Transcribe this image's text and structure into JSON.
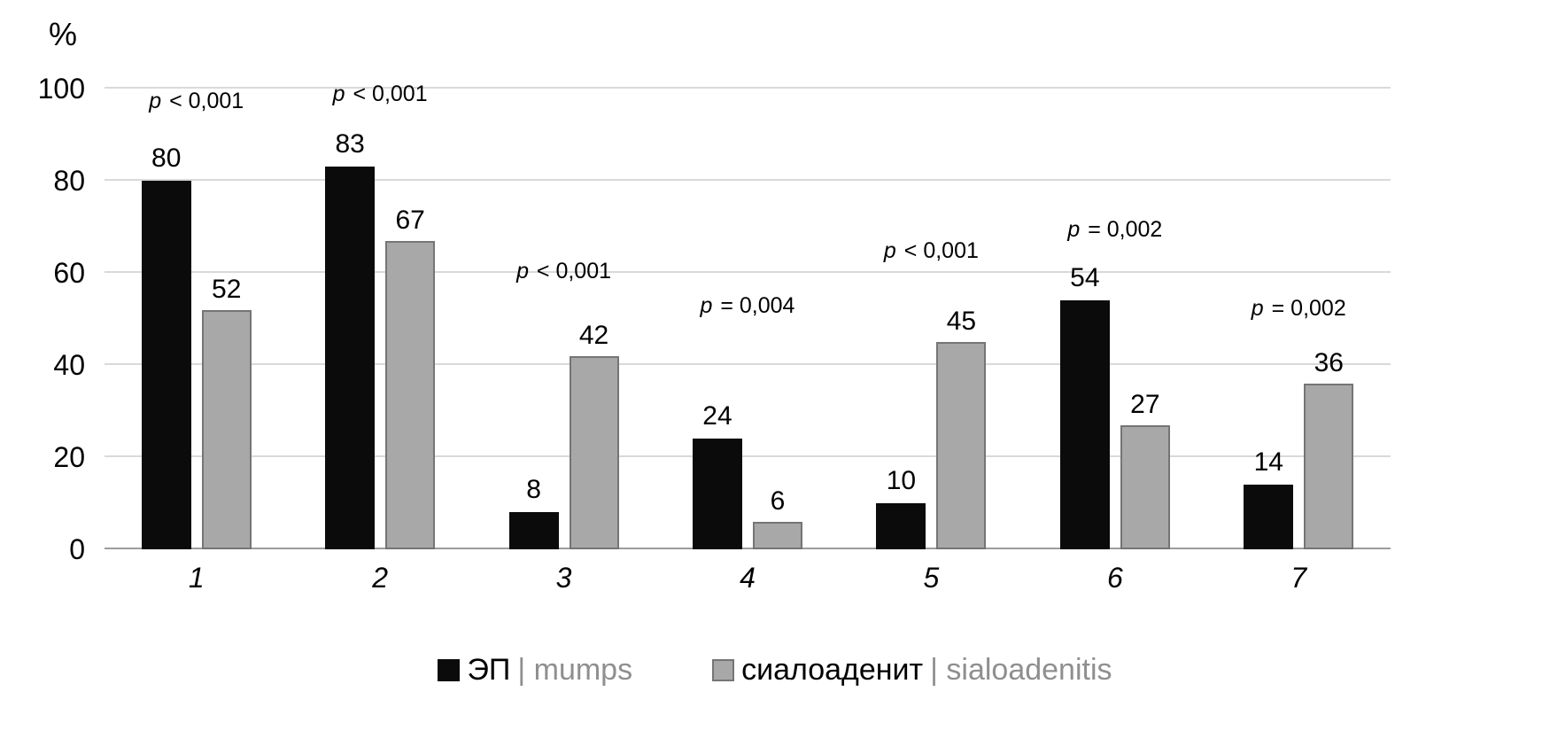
{
  "chart_data": {
    "type": "bar",
    "title": "",
    "xlabel": "",
    "ylabel": "%",
    "ylim": [
      0,
      100
    ],
    "yticks": [
      0,
      20,
      40,
      60,
      80,
      100
    ],
    "grid": true,
    "legend_position": "bottom",
    "categories": [
      "1",
      "2",
      "3",
      "4",
      "5",
      "6",
      "7"
    ],
    "series": [
      {
        "name": "ЭП | mumps",
        "color": "#0b0b0b",
        "values": [
          80,
          83,
          8,
          24,
          10,
          54,
          14
        ]
      },
      {
        "name": "сиалоаденит | sialoadenitis",
        "color": "#a8a8a8",
        "border": "#757575",
        "values": [
          52,
          67,
          42,
          6,
          45,
          27,
          36
        ]
      }
    ],
    "p_annotations": [
      {
        "text": "p < 0,001",
        "y": 94.5
      },
      {
        "text": "p < 0,001",
        "y": 96
      },
      {
        "text": "p < 0,001",
        "y": 57.5
      },
      {
        "text": "p = 0,004",
        "y": 50
      },
      {
        "text": "p < 0,001",
        "y": 62
      },
      {
        "text": "p = 0,002",
        "y": 66.5
      },
      {
        "text": "p = 0,002",
        "y": 49.5
      }
    ]
  },
  "legend": {
    "items": [
      {
        "swatch_color": "#0b0b0b",
        "swatch_border": "",
        "primary": "ЭП",
        "separator": "|",
        "secondary": "mumps"
      },
      {
        "swatch_color": "#a8a8a8",
        "swatch_border": "#757575",
        "primary": "сиалоаденит",
        "separator": "|",
        "secondary": "sialoadenitis"
      }
    ]
  }
}
